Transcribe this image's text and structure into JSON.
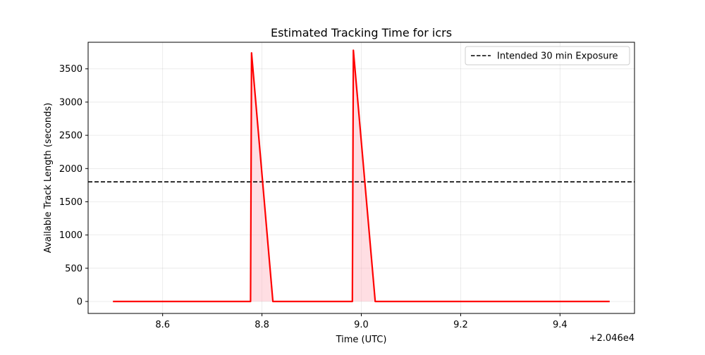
{
  "chart_data": {
    "type": "line",
    "title": "Estimated Tracking Time for icrs",
    "xlabel": "Time (UTC)",
    "ylabel": "Available Track Length (seconds)",
    "x_offset_label": "+2.046e4",
    "xlim": [
      8.45,
      9.55
    ],
    "ylim": [
      -180,
      3900
    ],
    "x_ticks": [
      8.6,
      8.8,
      9.0,
      9.2,
      9.4
    ],
    "x_tick_labels": [
      "8.6",
      "8.8",
      "9.0",
      "9.2",
      "9.4"
    ],
    "y_ticks": [
      0,
      500,
      1000,
      1500,
      2000,
      2500,
      3000,
      3500
    ],
    "y_tick_labels": [
      "0",
      "500",
      "1000",
      "1500",
      "2000",
      "2500",
      "3000",
      "3500"
    ],
    "grid": true,
    "legend_position": "top-right",
    "series": [
      {
        "kind": "line",
        "color": "#ff0000",
        "fill": "#ffb6c1",
        "x": [
          8.5,
          8.777,
          8.779,
          8.822,
          8.824,
          8.982,
          8.984,
          9.028,
          9.03,
          9.5
        ],
        "y": [
          0,
          0,
          3740,
          0,
          0,
          0,
          3780,
          0,
          0,
          0
        ]
      }
    ],
    "reference_lines": [
      {
        "name": "Intended 30 min Exposure",
        "y": 1800,
        "color": "#000000",
        "style": "dashed"
      }
    ]
  }
}
